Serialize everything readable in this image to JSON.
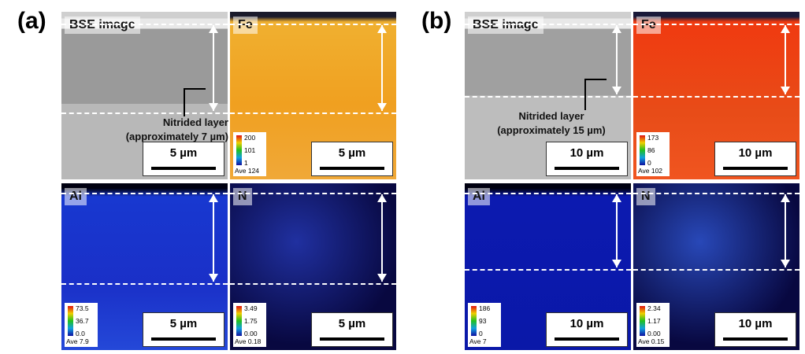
{
  "figures": [
    {
      "label": "(a)",
      "panels": [
        {
          "label": "BSE image",
          "scale_bar": "5 µm",
          "annotation": [
            "Nitrided layer",
            "(approximately 7 µm)"
          ]
        },
        {
          "label": "Fe",
          "scale_bar": "5 µm",
          "colorbar": [
            "200",
            "101",
            "1"
          ],
          "average": "Ave 124"
        },
        {
          "label": "Al",
          "scale_bar": "5 µm",
          "colorbar": [
            "73.5",
            "36.7",
            "0.0"
          ],
          "average": "Ave 7.9"
        },
        {
          "label": "N",
          "scale_bar": "5 µm",
          "colorbar": [
            "3.49",
            "1.75",
            "0.00"
          ],
          "average": "Ave 0.18"
        }
      ]
    },
    {
      "label": "(b)",
      "panels": [
        {
          "label": "BSE image",
          "scale_bar": "10 µm",
          "annotation": [
            "Nitrided layer",
            "(approximately 15 µm)"
          ]
        },
        {
          "label": "Fe",
          "scale_bar": "10 µm",
          "colorbar": [
            "173",
            "86",
            "0"
          ],
          "average": "Ave 102"
        },
        {
          "label": "Al",
          "scale_bar": "10 µm",
          "colorbar": [
            "186",
            "93",
            "0"
          ],
          "average": "Ave 7"
        },
        {
          "label": "N",
          "scale_bar": "10 µm",
          "colorbar": [
            "2.34",
            "1.17",
            "0.00"
          ],
          "average": "Ave 0.15"
        }
      ]
    }
  ]
}
